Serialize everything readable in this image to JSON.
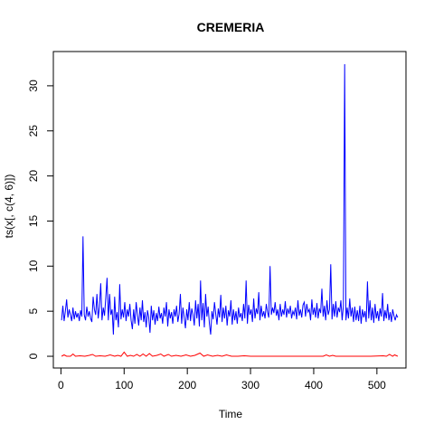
{
  "chart_data": {
    "type": "line",
    "title": "CREMERIA",
    "xlabel": "Time",
    "ylabel": "ts(x[, c(4, 6)])",
    "xlim": [
      -12,
      546
    ],
    "ylim": [
      -1.3,
      33.8
    ],
    "x_ticks": [
      0,
      100,
      200,
      300,
      400,
      500
    ],
    "y_ticks": [
      0,
      5,
      10,
      15,
      20,
      25,
      30
    ],
    "grid": false,
    "legend": "none",
    "series": [
      {
        "color": "#0000ff",
        "points": [
          [
            1,
            4.0
          ],
          [
            3,
            5.6
          ],
          [
            5,
            3.9
          ],
          [
            7,
            5.0
          ],
          [
            9,
            6.3
          ],
          [
            11,
            4.3
          ],
          [
            13,
            5.2
          ],
          [
            15,
            4.6
          ],
          [
            17,
            3.9
          ],
          [
            19,
            5.4
          ],
          [
            21,
            4.1
          ],
          [
            23,
            5.0
          ],
          [
            25,
            4.3
          ],
          [
            27,
            4.8
          ],
          [
            29,
            3.9
          ],
          [
            31,
            5.1
          ],
          [
            33,
            4.4
          ],
          [
            35,
            13.3
          ],
          [
            37,
            4.6
          ],
          [
            39,
            4.0
          ],
          [
            41,
            5.5
          ],
          [
            43,
            4.4
          ],
          [
            45,
            5.0
          ],
          [
            47,
            4.2
          ],
          [
            49,
            3.8
          ],
          [
            51,
            6.6
          ],
          [
            53,
            5.2
          ],
          [
            55,
            4.6
          ],
          [
            57,
            6.9
          ],
          [
            59,
            4.2
          ],
          [
            61,
            5.5
          ],
          [
            63,
            8.1
          ],
          [
            65,
            4.0
          ],
          [
            67,
            5.4
          ],
          [
            69,
            4.5
          ],
          [
            71,
            6.5
          ],
          [
            73,
            8.7
          ],
          [
            75,
            4.0
          ],
          [
            77,
            6.9
          ],
          [
            79,
            4.6
          ],
          [
            81,
            5.2
          ],
          [
            83,
            2.4
          ],
          [
            85,
            6.6
          ],
          [
            87,
            4.0
          ],
          [
            89,
            4.9
          ],
          [
            91,
            3.2
          ],
          [
            93,
            8.0
          ],
          [
            95,
            4.1
          ],
          [
            97,
            5.2
          ],
          [
            99,
            4.3
          ],
          [
            101,
            6.0
          ],
          [
            103,
            3.9
          ],
          [
            105,
            5.2
          ],
          [
            107,
            4.4
          ],
          [
            109,
            5.8
          ],
          [
            111,
            4.0
          ],
          [
            113,
            3.0
          ],
          [
            115,
            5.2
          ],
          [
            117,
            3.6
          ],
          [
            119,
            6.0
          ],
          [
            121,
            4.6
          ],
          [
            123,
            3.4
          ],
          [
            125,
            5.4
          ],
          [
            127,
            4.0
          ],
          [
            129,
            6.2
          ],
          [
            131,
            3.8
          ],
          [
            133,
            4.9
          ],
          [
            135,
            3.2
          ],
          [
            137,
            5.1
          ],
          [
            139,
            4.3
          ],
          [
            141,
            2.6
          ],
          [
            143,
            5.6
          ],
          [
            145,
            4.0
          ],
          [
            147,
            5.1
          ],
          [
            149,
            3.5
          ],
          [
            151,
            4.8
          ],
          [
            153,
            3.9
          ],
          [
            155,
            5.5
          ],
          [
            157,
            4.2
          ],
          [
            159,
            4.8
          ],
          [
            161,
            3.6
          ],
          [
            163,
            5.4
          ],
          [
            165,
            4.4
          ],
          [
            167,
            6.0
          ],
          [
            169,
            3.3
          ],
          [
            171,
            5.2
          ],
          [
            173,
            4.2
          ],
          [
            175,
            4.9
          ],
          [
            177,
            3.6
          ],
          [
            179,
            5.2
          ],
          [
            181,
            4.4
          ],
          [
            183,
            5.6
          ],
          [
            185,
            3.8
          ],
          [
            187,
            4.7
          ],
          [
            189,
            6.9
          ],
          [
            191,
            3.6
          ],
          [
            193,
            5.4
          ],
          [
            195,
            4.3
          ],
          [
            197,
            3.1
          ],
          [
            199,
            5.2
          ],
          [
            201,
            4.0
          ],
          [
            203,
            6.0
          ],
          [
            205,
            3.9
          ],
          [
            207,
            5.3
          ],
          [
            209,
            4.6
          ],
          [
            211,
            3.4
          ],
          [
            213,
            6.2
          ],
          [
            215,
            4.2
          ],
          [
            217,
            5.8
          ],
          [
            219,
            3.3
          ],
          [
            221,
            8.4
          ],
          [
            223,
            4.0
          ],
          [
            225,
            5.9
          ],
          [
            227,
            3.2
          ],
          [
            229,
            6.9
          ],
          [
            231,
            4.4
          ],
          [
            233,
            5.5
          ],
          [
            235,
            3.6
          ],
          [
            237,
            2.4
          ],
          [
            239,
            5.0
          ],
          [
            241,
            4.1
          ],
          [
            243,
            6.0
          ],
          [
            245,
            4.7
          ],
          [
            247,
            3.5
          ],
          [
            249,
            5.3
          ],
          [
            251,
            4.3
          ],
          [
            253,
            6.8
          ],
          [
            255,
            3.8
          ],
          [
            257,
            5.4
          ],
          [
            259,
            4.2
          ],
          [
            261,
            5.6
          ],
          [
            263,
            3.4
          ],
          [
            265,
            5.1
          ],
          [
            267,
            4.4
          ],
          [
            269,
            6.2
          ],
          [
            271,
            3.5
          ],
          [
            273,
            5.2
          ],
          [
            275,
            4.0
          ],
          [
            277,
            5.0
          ],
          [
            279,
            3.6
          ],
          [
            281,
            5.4
          ],
          [
            283,
            4.3
          ],
          [
            285,
            4.8
          ],
          [
            287,
            3.9
          ],
          [
            289,
            5.8
          ],
          [
            291,
            4.2
          ],
          [
            293,
            8.4
          ],
          [
            295,
            3.6
          ],
          [
            297,
            5.7
          ],
          [
            299,
            4.6
          ],
          [
            301,
            5.2
          ],
          [
            303,
            3.8
          ],
          [
            305,
            6.4
          ],
          [
            307,
            4.2
          ],
          [
            309,
            5.3
          ],
          [
            311,
            4.7
          ],
          [
            313,
            7.1
          ],
          [
            315,
            4.0
          ],
          [
            317,
            5.6
          ],
          [
            319,
            4.4
          ],
          [
            321,
            5.0
          ],
          [
            323,
            4.2
          ],
          [
            325,
            5.8
          ],
          [
            327,
            4.9
          ],
          [
            329,
            4.3
          ],
          [
            331,
            10.0
          ],
          [
            333,
            4.6
          ],
          [
            335,
            5.4
          ],
          [
            337,
            4.8
          ],
          [
            339,
            6.0
          ],
          [
            341,
            4.5
          ],
          [
            343,
            5.2
          ],
          [
            345,
            4.0
          ],
          [
            347,
            5.8
          ],
          [
            349,
            4.4
          ],
          [
            351,
            5.2
          ],
          [
            353,
            4.6
          ],
          [
            355,
            6.1
          ],
          [
            357,
            4.3
          ],
          [
            359,
            5.3
          ],
          [
            361,
            4.7
          ],
          [
            363,
            5.6
          ],
          [
            365,
            4.2
          ],
          [
            367,
            5.0
          ],
          [
            369,
            4.6
          ],
          [
            371,
            5.4
          ],
          [
            373,
            4.1
          ],
          [
            375,
            6.2
          ],
          [
            377,
            4.5
          ],
          [
            379,
            5.2
          ],
          [
            381,
            4.3
          ],
          [
            383,
            5.7
          ],
          [
            385,
            6.0
          ],
          [
            387,
            4.4
          ],
          [
            389,
            5.8
          ],
          [
            391,
            4.9
          ],
          [
            393,
            5.2
          ],
          [
            395,
            4.0
          ],
          [
            397,
            6.3
          ],
          [
            399,
            4.6
          ],
          [
            401,
            5.4
          ],
          [
            403,
            4.3
          ],
          [
            405,
            5.9
          ],
          [
            407,
            4.2
          ],
          [
            409,
            5.3
          ],
          [
            411,
            4.8
          ],
          [
            413,
            7.5
          ],
          [
            415,
            4.4
          ],
          [
            417,
            5.6
          ],
          [
            419,
            4.0
          ],
          [
            421,
            6.2
          ],
          [
            423,
            4.6
          ],
          [
            425,
            5.2
          ],
          [
            427,
            10.2
          ],
          [
            429,
            4.1
          ],
          [
            431,
            5.8
          ],
          [
            433,
            4.4
          ],
          [
            435,
            6.1
          ],
          [
            437,
            4.3
          ],
          [
            439,
            5.4
          ],
          [
            441,
            4.9
          ],
          [
            443,
            6.2
          ],
          [
            445,
            4.0
          ],
          [
            447,
            5.6
          ],
          [
            449,
            32.4
          ],
          [
            451,
            4.0
          ],
          [
            453,
            5.4
          ],
          [
            455,
            4.2
          ],
          [
            457,
            6.4
          ],
          [
            459,
            4.4
          ],
          [
            461,
            5.4
          ],
          [
            463,
            3.8
          ],
          [
            465,
            5.5
          ],
          [
            467,
            4.0
          ],
          [
            469,
            5.1
          ],
          [
            471,
            3.9
          ],
          [
            473,
            5.6
          ],
          [
            475,
            3.6
          ],
          [
            477,
            5.2
          ],
          [
            479,
            4.3
          ],
          [
            481,
            5.0
          ],
          [
            483,
            3.8
          ],
          [
            485,
            8.3
          ],
          [
            487,
            4.2
          ],
          [
            489,
            6.2
          ],
          [
            491,
            4.0
          ],
          [
            493,
            5.4
          ],
          [
            495,
            3.7
          ],
          [
            497,
            5.8
          ],
          [
            499,
            4.2
          ],
          [
            501,
            5.0
          ],
          [
            503,
            3.9
          ],
          [
            505,
            5.3
          ],
          [
            507,
            4.4
          ],
          [
            509,
            7.0
          ],
          [
            511,
            3.9
          ],
          [
            513,
            5.1
          ],
          [
            515,
            4.2
          ],
          [
            517,
            5.8
          ],
          [
            519,
            4.0
          ],
          [
            521,
            4.9
          ],
          [
            523,
            3.8
          ],
          [
            525,
            5.2
          ],
          [
            527,
            4.5
          ],
          [
            529,
            4.0
          ],
          [
            531,
            4.6
          ],
          [
            533,
            4.3
          ]
        ]
      },
      {
        "color": "#ff0000",
        "points": [
          [
            1,
            0.0
          ],
          [
            5,
            0.15
          ],
          [
            9,
            0.0
          ],
          [
            15,
            0.0
          ],
          [
            19,
            0.25
          ],
          [
            23,
            0.0
          ],
          [
            30,
            0.05
          ],
          [
            38,
            0.0
          ],
          [
            45,
            0.1
          ],
          [
            50,
            0.2
          ],
          [
            55,
            0.0
          ],
          [
            62,
            0.05
          ],
          [
            70,
            0.0
          ],
          [
            78,
            0.15
          ],
          [
            85,
            0.0
          ],
          [
            90,
            0.1
          ],
          [
            95,
            0.0
          ],
          [
            100,
            0.45
          ],
          [
            105,
            0.0
          ],
          [
            110,
            0.1
          ],
          [
            115,
            0.0
          ],
          [
            120,
            0.2
          ],
          [
            125,
            0.0
          ],
          [
            130,
            0.25
          ],
          [
            135,
            0.0
          ],
          [
            140,
            0.3
          ],
          [
            145,
            0.0
          ],
          [
            152,
            0.1
          ],
          [
            158,
            0.25
          ],
          [
            163,
            0.0
          ],
          [
            170,
            0.2
          ],
          [
            175,
            0.0
          ],
          [
            182,
            0.1
          ],
          [
            190,
            0.0
          ],
          [
            198,
            0.15
          ],
          [
            205,
            0.0
          ],
          [
            212,
            0.1
          ],
          [
            220,
            0.35
          ],
          [
            226,
            0.0
          ],
          [
            232,
            0.15
          ],
          [
            240,
            0.0
          ],
          [
            248,
            0.1
          ],
          [
            255,
            0.0
          ],
          [
            262,
            0.15
          ],
          [
            270,
            0.0
          ],
          [
            280,
            0.0
          ],
          [
            290,
            0.05
          ],
          [
            300,
            0.0
          ],
          [
            320,
            0.0
          ],
          [
            340,
            0.0
          ],
          [
            360,
            0.0
          ],
          [
            380,
            0.0
          ],
          [
            400,
            0.0
          ],
          [
            415,
            0.0
          ],
          [
            420,
            0.15
          ],
          [
            425,
            0.0
          ],
          [
            430,
            0.1
          ],
          [
            435,
            0.0
          ],
          [
            450,
            0.0
          ],
          [
            470,
            0.0
          ],
          [
            490,
            0.0
          ],
          [
            510,
            0.05
          ],
          [
            515,
            0.0
          ],
          [
            520,
            0.2
          ],
          [
            525,
            0.0
          ],
          [
            528,
            0.15
          ],
          [
            533,
            0.0
          ]
        ]
      }
    ]
  }
}
